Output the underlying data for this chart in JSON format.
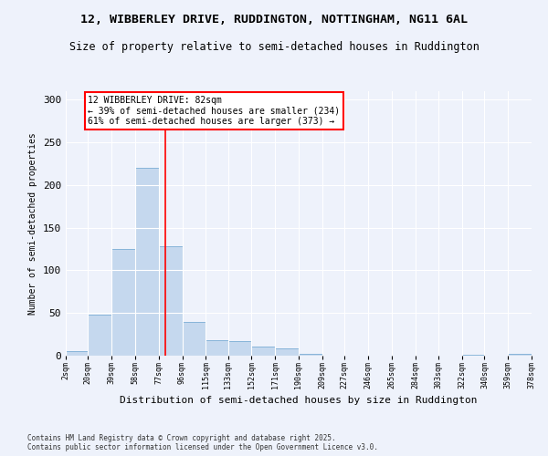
{
  "title_line1": "12, WIBBERLEY DRIVE, RUDDINGTON, NOTTINGHAM, NG11 6AL",
  "title_line2": "Size of property relative to semi-detached houses in Ruddington",
  "xlabel": "Distribution of semi-detached houses by size in Ruddington",
  "ylabel": "Number of semi-detached properties",
  "bar_color": "#c5d8ee",
  "bar_edgecolor": "#7aadd4",
  "background_color": "#eef2fb",
  "grid_color": "#ffffff",
  "annotation_text": "12 WIBBERLEY DRIVE: 82sqm\n← 39% of semi-detached houses are smaller (234)\n61% of semi-detached houses are larger (373) →",
  "vline_x": 82,
  "bins": [
    2,
    20,
    39,
    58,
    77,
    96,
    115,
    133,
    152,
    171,
    190,
    209,
    227,
    246,
    265,
    284,
    303,
    322,
    340,
    359,
    378
  ],
  "bin_labels": [
    "2sqm",
    "20sqm",
    "39sqm",
    "58sqm",
    "77sqm",
    "96sqm",
    "115sqm",
    "133sqm",
    "152sqm",
    "171sqm",
    "190sqm",
    "209sqm",
    "227sqm",
    "246sqm",
    "265sqm",
    "284sqm",
    "303sqm",
    "322sqm",
    "340sqm",
    "359sqm",
    "378sqm"
  ],
  "values": [
    5,
    48,
    125,
    220,
    128,
    40,
    18,
    17,
    11,
    9,
    2,
    0,
    0,
    0,
    0,
    0,
    0,
    1,
    0,
    2
  ],
  "ylim": [
    0,
    310
  ],
  "yticks": [
    0,
    50,
    100,
    150,
    200,
    250,
    300
  ],
  "footnote": "Contains HM Land Registry data © Crown copyright and database right 2025.\nContains public sector information licensed under the Open Government Licence v3.0.",
  "annotation_box_edgecolor": "red",
  "vline_color": "red"
}
